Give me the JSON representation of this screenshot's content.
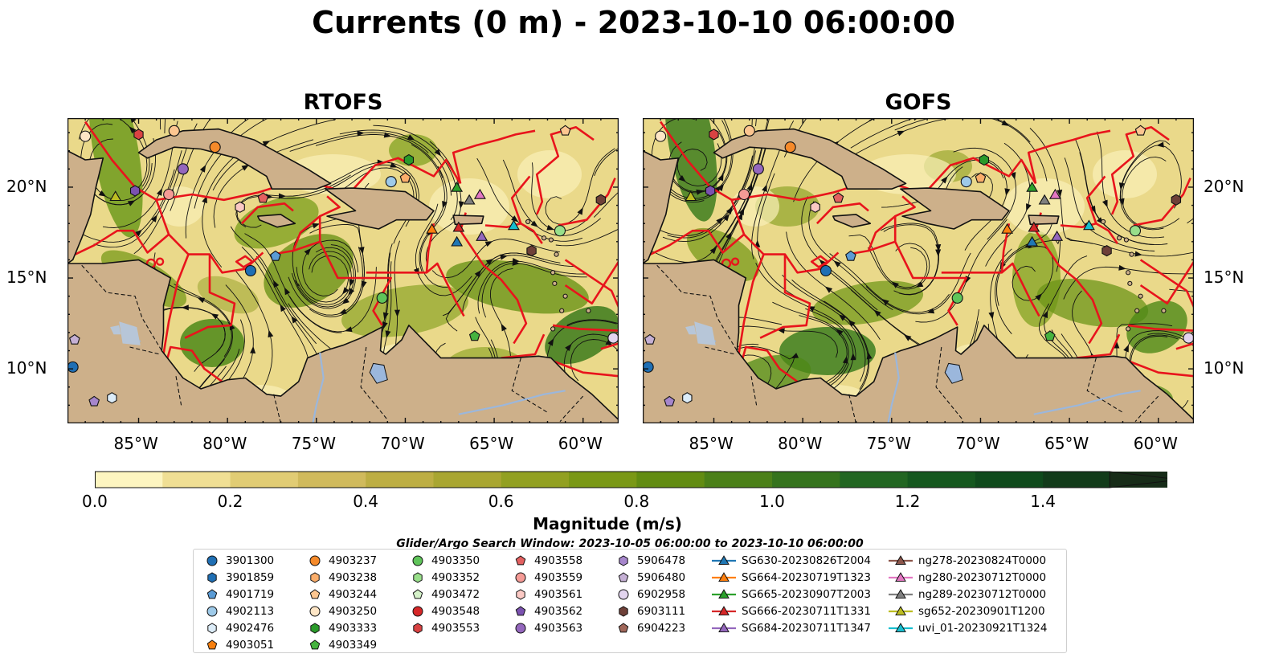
{
  "title": "Currents (0 m) - 2023-10-10 06:00:00",
  "panels": [
    {
      "title": "RTOFS",
      "swirl": 1.0
    },
    {
      "title": "GOFS",
      "swirl": 1.35
    }
  ],
  "lon_ticks": [
    "85°W",
    "80°W",
    "75°W",
    "70°W",
    "65°W",
    "60°W"
  ],
  "lat_ticks": [
    "20°N",
    "15°N",
    "10°N"
  ],
  "colorbar": {
    "label": "Magnitude (m/s)",
    "tick_labels": [
      "0.0",
      "0.2",
      "0.4",
      "0.6",
      "0.8",
      "1.0",
      "1.2",
      "1.4"
    ],
    "colors": [
      "#fdf5c0",
      "#f0df94",
      "#e1cc74",
      "#d0ba5c",
      "#bdae43",
      "#a9a631",
      "#92a021",
      "#7a9816",
      "#628c12",
      "#4b8018",
      "#35731d",
      "#226622",
      "#15581f",
      "#0f4a1c",
      "#123b1a",
      "#172c18"
    ]
  },
  "search_window": "Glider/Argo Search Window: 2023-10-05 06:00:00 to 2023-10-10 06:00:00",
  "legend": [
    [
      {
        "label": "3901300",
        "shape": "circle",
        "color": "#1f6fb4"
      },
      {
        "label": "3901859",
        "shape": "hexagon",
        "color": "#1f6fb4"
      },
      {
        "label": "4901719",
        "shape": "pentagon",
        "color": "#5a9bd5"
      },
      {
        "label": "4902113",
        "shape": "circle",
        "color": "#9ecae9"
      },
      {
        "label": "4902476",
        "shape": "hexagon",
        "color": "#dcecf8"
      },
      {
        "label": "4903051",
        "shape": "pentagon",
        "color": "#f77f0e"
      }
    ],
    [
      {
        "label": "4903237",
        "shape": "circle",
        "color": "#f58a2a"
      },
      {
        "label": "4903238",
        "shape": "hexagon",
        "color": "#fbae6b"
      },
      {
        "label": "4903244",
        "shape": "pentagon",
        "color": "#fdc690"
      },
      {
        "label": "4903250",
        "shape": "circle",
        "color": "#fee6c6"
      },
      {
        "label": "4903333",
        "shape": "hexagon",
        "color": "#2a9a2a"
      },
      {
        "label": "4903349",
        "shape": "pentagon",
        "color": "#46b33f"
      }
    ],
    [
      {
        "label": "4903350",
        "shape": "circle",
        "color": "#5fc45a"
      },
      {
        "label": "4903352",
        "shape": "hexagon",
        "color": "#98df8a"
      },
      {
        "label": "4903472",
        "shape": "pentagon",
        "color": "#d5f2c9"
      },
      {
        "label": "4903548",
        "shape": "circle",
        "color": "#d62728"
      },
      {
        "label": "4903553",
        "shape": "hexagon",
        "color": "#d94242"
      }
    ],
    [
      {
        "label": "4903558",
        "shape": "pentagon",
        "color": "#e36060"
      },
      {
        "label": "4903559",
        "shape": "circle",
        "color": "#f59b96"
      },
      {
        "label": "4903561",
        "shape": "hexagon",
        "color": "#fbc9c4"
      },
      {
        "label": "4903562",
        "shape": "pentagon",
        "color": "#7b52b0"
      },
      {
        "label": "4903563",
        "shape": "circle",
        "color": "#9467bd"
      }
    ],
    [
      {
        "label": "5906478",
        "shape": "hexagon",
        "color": "#a686cc"
      },
      {
        "label": "5906480",
        "shape": "pentagon",
        "color": "#c5b0d5"
      },
      {
        "label": "6902958",
        "shape": "circle",
        "color": "#e2d4ee"
      },
      {
        "label": "6903111",
        "shape": "hexagon",
        "color": "#6e4038"
      },
      {
        "label": "6904223",
        "shape": "pentagon",
        "color": "#a0675a"
      }
    ],
    [
      {
        "label": "SG630-20230826T2004",
        "shape": "triangle",
        "color": "#1f77b4"
      },
      {
        "label": "SG664-20230719T1323",
        "shape": "triangle",
        "color": "#ff7f0e"
      },
      {
        "label": "SG665-20230907T2003",
        "shape": "triangle",
        "color": "#2ca02c"
      },
      {
        "label": "SG666-20230711T1331",
        "shape": "triangle",
        "color": "#d62728"
      },
      {
        "label": "SG684-20230711T1347",
        "shape": "triangle",
        "color": "#9467bd"
      }
    ],
    [
      {
        "label": "ng278-20230824T0000",
        "shape": "triangle",
        "color": "#8c564b"
      },
      {
        "label": "ng280-20230712T0000",
        "shape": "triangle",
        "color": "#e377c2"
      },
      {
        "label": "ng289-20230712T0000",
        "shape": "triangle",
        "color": "#7f7f7f"
      },
      {
        "label": "sg652-20230901T1200",
        "shape": "triangle",
        "color": "#bcbd22"
      },
      {
        "label": "uvi_01-20230921T1324",
        "shape": "triangle",
        "color": "#17becf"
      }
    ]
  ]
}
